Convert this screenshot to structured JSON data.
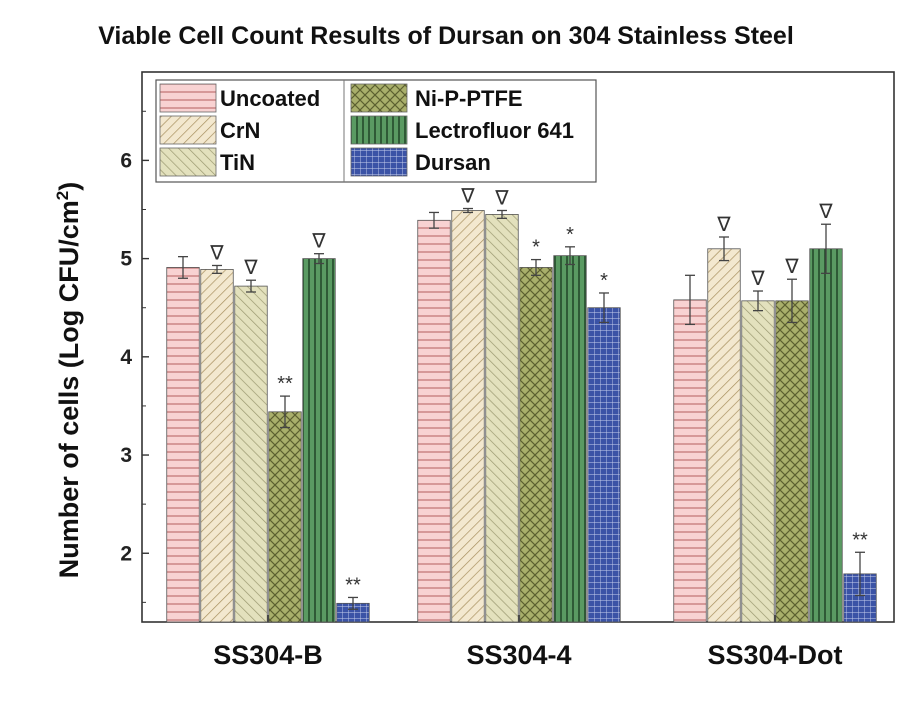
{
  "chart_data": {
    "type": "bar",
    "title": "Viable Cell Count Results of Dursan on 304 Stainless Steel",
    "xlabel": "",
    "ylabel": "Number of cells (Log CFU/cm",
    "ylabel_sup": "2",
    "ylabel_close": ")",
    "ylim": [
      1.3,
      6.9
    ],
    "yticks": [
      2,
      3,
      4,
      5,
      6
    ],
    "categories": [
      "SS304-B",
      "SS304-4",
      "SS304-Dot"
    ],
    "series": [
      {
        "name": "Uncoated",
        "color": "#f6c6c6",
        "pattern": "horizontal",
        "values": [
          4.91,
          5.39,
          4.58
        ],
        "errors": [
          0.11,
          0.08,
          0.25
        ],
        "annotations": [
          "",
          "",
          ""
        ]
      },
      {
        "name": "CrN",
        "color": "#efe3c8",
        "pattern": "diagonal-right",
        "values": [
          4.89,
          5.49,
          5.1
        ],
        "errors": [
          0.04,
          0.02,
          0.12
        ],
        "annotations": [
          "∇",
          "∇",
          "∇"
        ]
      },
      {
        "name": "TiN",
        "color": "#dedcb4",
        "pattern": "diagonal-left",
        "values": [
          4.72,
          5.45,
          4.57
        ],
        "errors": [
          0.06,
          0.04,
          0.1
        ],
        "annotations": [
          "∇",
          "∇",
          "∇"
        ]
      },
      {
        "name": "Ni-P-PTFE",
        "color": "#a7ad6a",
        "pattern": "crosshatch",
        "values": [
          3.44,
          4.91,
          4.57
        ],
        "errors": [
          0.16,
          0.08,
          0.22
        ],
        "annotations": [
          "**",
          "*",
          "∇"
        ]
      },
      {
        "name": "Lectrofluor 641",
        "color": "#4c8a54",
        "pattern": "vertical",
        "values": [
          5.0,
          5.03,
          5.1
        ],
        "errors": [
          0.05,
          0.09,
          0.25
        ],
        "annotations": [
          "∇",
          "*",
          "∇"
        ]
      },
      {
        "name": "Dursan",
        "color": "#3a4f9e",
        "pattern": "grid",
        "values": [
          1.49,
          4.5,
          1.79
        ],
        "errors": [
          0.06,
          0.15,
          0.22
        ],
        "annotations": [
          "**",
          "*",
          "**"
        ]
      }
    ],
    "legend": "top-left, two columns",
    "grid": false
  }
}
